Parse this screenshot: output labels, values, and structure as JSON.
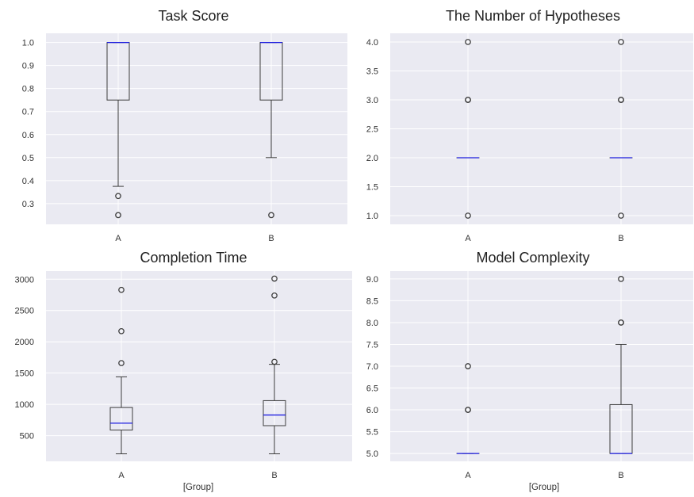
{
  "colors": {
    "plot_background": "#eaeaf2",
    "grid": "#ffffff",
    "box_line": "#3d3d3d",
    "median": "#1f1fe0",
    "text": "#222222"
  },
  "chart_data": [
    {
      "type": "boxplot",
      "title": "Task Score",
      "xlabel": "",
      "ylabel": "",
      "categories": [
        "A",
        "B"
      ],
      "ylim": [
        0.21,
        1.04
      ],
      "yticks": [
        0.3,
        0.4,
        0.5,
        0.6,
        0.7,
        0.8,
        0.9,
        1.0
      ],
      "ytick_labels": [
        "0.3",
        "0.4",
        "0.5",
        "0.6",
        "0.7",
        "0.8",
        "0.9",
        "1.0"
      ],
      "grid": true,
      "boxes": [
        {
          "q1": 0.75,
          "median": 1.0,
          "q3": 1.0,
          "whisker_low": 0.375,
          "whisker_high": 1.0,
          "outliers": [
            0.333,
            0.25
          ]
        },
        {
          "q1": 0.75,
          "median": 1.0,
          "q3": 1.0,
          "whisker_low": 0.5,
          "whisker_high": 1.0,
          "outliers": [
            0.25
          ]
        }
      ]
    },
    {
      "type": "boxplot",
      "title": "The Number of Hypotheses",
      "xlabel": "",
      "ylabel": "",
      "categories": [
        "A",
        "B"
      ],
      "ylim": [
        0.85,
        4.15
      ],
      "yticks": [
        1.0,
        1.5,
        2.0,
        2.5,
        3.0,
        3.5,
        4.0
      ],
      "ytick_labels": [
        "1.0",
        "1.5",
        "2.0",
        "2.5",
        "3.0",
        "3.5",
        "4.0"
      ],
      "grid": true,
      "boxes": [
        {
          "q1": 2.0,
          "median": 2.0,
          "q3": 2.0,
          "whisker_low": 2.0,
          "whisker_high": 2.0,
          "outliers": [
            4.0,
            3.0,
            3.0,
            1.0
          ]
        },
        {
          "q1": 2.0,
          "median": 2.0,
          "q3": 2.0,
          "whisker_low": 2.0,
          "whisker_high": 2.0,
          "outliers": [
            4.0,
            3.0,
            3.0,
            1.0
          ]
        }
      ]
    },
    {
      "type": "boxplot",
      "title": "Completion Time",
      "xlabel": "[Group]",
      "ylabel": "",
      "categories": [
        "A",
        "B"
      ],
      "ylim": [
        90,
        3130
      ],
      "yticks": [
        500,
        1000,
        1500,
        2000,
        2500,
        3000
      ],
      "ytick_labels": [
        "500",
        "1000",
        "1500",
        "2000",
        "2500",
        "3000"
      ],
      "grid": true,
      "boxes": [
        {
          "q1": 590,
          "median": 700,
          "q3": 950,
          "whisker_low": 210,
          "whisker_high": 1440,
          "outliers": [
            1660,
            2170,
            2830
          ]
        },
        {
          "q1": 660,
          "median": 830,
          "q3": 1060,
          "whisker_low": 210,
          "whisker_high": 1640,
          "outliers": [
            1680,
            2740,
            3010
          ]
        }
      ]
    },
    {
      "type": "boxplot",
      "title": "Model Complexity",
      "xlabel": "[Group]",
      "ylabel": "",
      "categories": [
        "A",
        "B"
      ],
      "ylim": [
        4.82,
        9.18
      ],
      "yticks": [
        5.0,
        5.5,
        6.0,
        6.5,
        7.0,
        7.5,
        8.0,
        8.5,
        9.0
      ],
      "ytick_labels": [
        "5.0",
        "5.5",
        "6.0",
        "6.5",
        "7.0",
        "7.5",
        "8.0",
        "8.5",
        "9.0"
      ],
      "grid": true,
      "boxes": [
        {
          "q1": 5.0,
          "median": 5.0,
          "q3": 5.0,
          "whisker_low": 5.0,
          "whisker_high": 5.0,
          "outliers": [
            6.0,
            6.0,
            7.0
          ]
        },
        {
          "q1": 5.0,
          "median": 5.0,
          "q3": 6.12,
          "whisker_low": 5.0,
          "whisker_high": 7.5,
          "outliers": [
            8.0,
            8.0,
            9.0
          ]
        }
      ]
    }
  ]
}
